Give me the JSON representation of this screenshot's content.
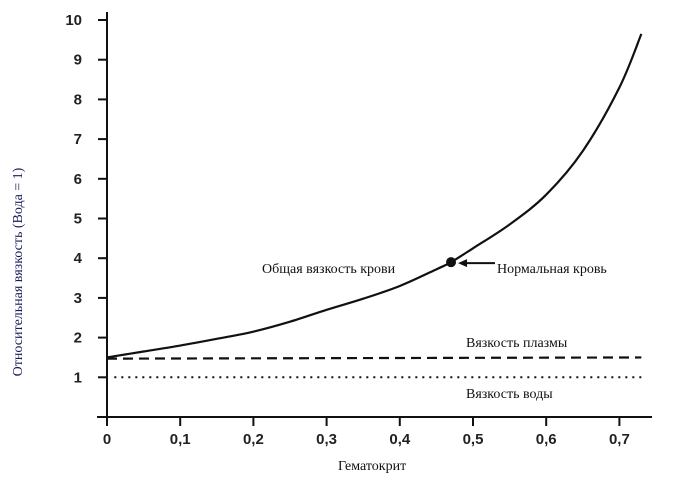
{
  "chart_data": {
    "type": "line",
    "xlabel": "Гематокрит",
    "ylabel": "Относительная вязкость (Вода = 1)",
    "xlim": [
      0,
      0.75
    ],
    "ylim": [
      0,
      10
    ],
    "x_ticks": [
      "0",
      "0,1",
      "0,2",
      "0,3",
      "0,4",
      "0,5",
      "0,6",
      "0,7"
    ],
    "x_tick_values": [
      0,
      0.1,
      0.2,
      0.3,
      0.4,
      0.5,
      0.6,
      0.7
    ],
    "y_ticks": [
      "1",
      "2",
      "3",
      "4",
      "5",
      "6",
      "7",
      "8",
      "9",
      "10"
    ],
    "y_tick_values": [
      1,
      2,
      3,
      4,
      5,
      6,
      7,
      8,
      9,
      10
    ],
    "grid": false,
    "series": [
      {
        "name": "Общая вязкость крови",
        "style": "solid",
        "x": [
          0,
          0.05,
          0.1,
          0.15,
          0.2,
          0.25,
          0.3,
          0.35,
          0.4,
          0.45,
          0.47,
          0.5,
          0.55,
          0.6,
          0.65,
          0.7,
          0.73
        ],
        "y": [
          1.5,
          1.65,
          1.8,
          1.97,
          2.15,
          2.4,
          2.7,
          2.98,
          3.3,
          3.72,
          3.9,
          4.25,
          4.85,
          5.6,
          6.7,
          8.3,
          9.65
        ]
      },
      {
        "name": "Вязкость плазмы",
        "style": "dashed",
        "x": [
          0,
          0.73
        ],
        "y": [
          1.47,
          1.5
        ]
      },
      {
        "name": "Вязкость воды",
        "style": "dotted",
        "x": [
          0.01,
          0.73
        ],
        "y": [
          1.0,
          1.0
        ]
      }
    ],
    "point": {
      "label": "Нормальная кровь",
      "x": 0.47,
      "y": 3.9
    }
  }
}
